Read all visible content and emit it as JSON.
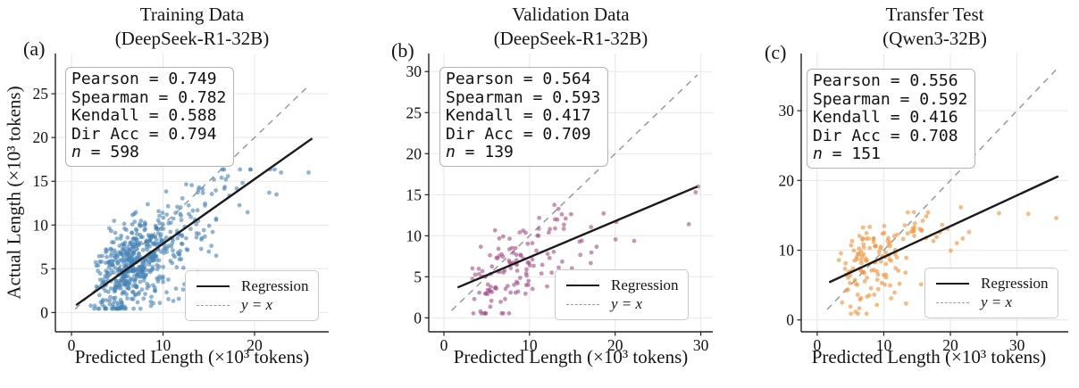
{
  "figure": {
    "background": "#ffffff",
    "grid_color": "#e9e9e9",
    "spine_color": "#222222",
    "regression_color": "#1a1a1a",
    "identity_color": "#999999"
  },
  "chart_data": [
    {
      "type": "scatter",
      "panel_label": "(a)",
      "title_line1": "Training Data",
      "title_line2": "(DeepSeek-R1-32B)",
      "xlabel": "Predicted Length (×10³ tokens)",
      "ylabel": "Actual Length (×10³ tokens)",
      "stats": [
        {
          "name": "Pearson",
          "value": "0.749"
        },
        {
          "name": "Spearman",
          "value": "0.782"
        },
        {
          "name": "Kendall",
          "value": "0.588"
        },
        {
          "name": "Dir Acc",
          "value": "0.794"
        },
        {
          "name": "n",
          "value": "598",
          "italic": true
        }
      ],
      "legend": [
        "Regression",
        "y = x"
      ],
      "axes": {
        "xlim": [
          -1.76,
          28.1
        ],
        "ylim": [
          -2.2,
          29.6
        ],
        "xticks": [
          0,
          10,
          20
        ],
        "yticks": [
          0,
          5,
          10,
          15,
          20,
          25
        ],
        "grid": true,
        "legend_position": "lower right"
      },
      "n": 598,
      "point_color": "#4682b4",
      "point_opacity": 0.6,
      "point_radius": 2.4,
      "regression_line": {
        "x1": 0.5,
        "y1": 0.85,
        "x2": 26.3,
        "y2": 19.9
      },
      "identity_line": {
        "x1": 0.4,
        "y1": 0.4,
        "x2": 26.0,
        "y2": 26.0
      },
      "scatter_gen": {
        "seed": 12,
        "n": 594,
        "log_mu": 1.988,
        "log_sigma": 0.4,
        "x_clip": [
          0.55,
          23.5
        ],
        "slope": 0.733,
        "intercept": 0.48,
        "noise_sd": 2.45,
        "y_clip": [
          0.45,
          16.35
        ]
      },
      "outlier_points": [
        [
          25.9,
          16.0
        ],
        [
          22.9,
          16.0
        ],
        [
          21.6,
          13.7
        ],
        [
          22.4,
          13.5
        ]
      ]
    },
    {
      "type": "scatter",
      "panel_label": "(b)",
      "title_line1": "Validation Data",
      "title_line2": "(DeepSeek-R1-32B)",
      "xlabel": "Predicted Length (×10³ tokens)",
      "stats": [
        {
          "name": "Pearson",
          "value": "0.564"
        },
        {
          "name": "Spearman",
          "value": "0.593"
        },
        {
          "name": "Kendall",
          "value": "0.417"
        },
        {
          "name": "Dir Acc",
          "value": "0.709"
        },
        {
          "name": "n",
          "value": "139",
          "italic": true
        }
      ],
      "legend": [
        "Regression",
        "y = x"
      ],
      "axes": {
        "xlim": [
          -1.77,
          31.4
        ],
        "ylim": [
          -1.7,
          32.2
        ],
        "xticks": [
          0,
          10,
          20,
          30
        ],
        "yticks": [
          0,
          5,
          10,
          15,
          20,
          25,
          30
        ],
        "grid": true,
        "legend_position": "lower right"
      },
      "n": 139,
      "point_color": "#a44d85",
      "point_opacity": 0.6,
      "point_radius": 2.4,
      "regression_line": {
        "x1": 1.6,
        "y1": 3.7,
        "x2": 29.6,
        "y2": 16.0
      },
      "identity_line": {
        "x1": 0.9,
        "y1": 0.9,
        "x2": 29.6,
        "y2": 29.6
      },
      "scatter_gen": {
        "seed": 5,
        "n": 136,
        "log_mu": 2.104,
        "log_sigma": 0.45,
        "x_clip": [
          1.6,
          27.0
        ],
        "slope": 0.4394,
        "intercept": 3.0,
        "noise_sd": 2.9,
        "y_clip": [
          0.55,
          16.4
        ]
      },
      "outlier_points": [
        [
          29.4,
          15.3
        ],
        [
          29.7,
          16.0
        ],
        [
          28.6,
          11.4
        ]
      ]
    },
    {
      "type": "scatter",
      "panel_label": "(c)",
      "title_line1": "Transfer Test",
      "title_line2": "(Qwen3-32B)",
      "xlabel": "Predicted Length (×10³ tokens)",
      "stats": [
        {
          "name": "Pearson",
          "value": "0.556"
        },
        {
          "name": "Spearman",
          "value": "0.592"
        },
        {
          "name": "Kendall",
          "value": "0.416"
        },
        {
          "name": "Dir Acc",
          "value": "0.708"
        },
        {
          "name": "n",
          "value": "151",
          "italic": true
        }
      ],
      "legend": [
        "Regression",
        "y = x"
      ],
      "axes": {
        "xlim": [
          -2.4,
          37.7
        ],
        "ylim": [
          -1.7,
          38.2
        ],
        "xticks": [
          0,
          10,
          20,
          30
        ],
        "yticks": [
          0,
          10,
          20,
          30
        ],
        "grid": true,
        "legend_position": "lower right"
      },
      "n": 151,
      "point_color": "#ee9744",
      "point_opacity": 0.65,
      "point_radius": 2.4,
      "regression_line": {
        "x1": 1.8,
        "y1": 5.4,
        "x2": 36.2,
        "y2": 20.6
      },
      "identity_line": {
        "x1": 1.5,
        "y1": 1.5,
        "x2": 36.3,
        "y2": 36.3
      },
      "scatter_gen": {
        "seed": 9,
        "n": 147,
        "log_mu": 2.152,
        "log_sigma": 0.5,
        "x_clip": [
          1.8,
          25.0
        ],
        "slope": 0.4419,
        "intercept": 4.6,
        "noise_sd": 3.2,
        "y_clip": [
          0.9,
          16.45
        ]
      },
      "outlier_points": [
        [
          27.3,
          15.3
        ],
        [
          31.7,
          15.2
        ],
        [
          35.9,
          14.6
        ],
        [
          22.8,
          12.6
        ]
      ]
    }
  ]
}
